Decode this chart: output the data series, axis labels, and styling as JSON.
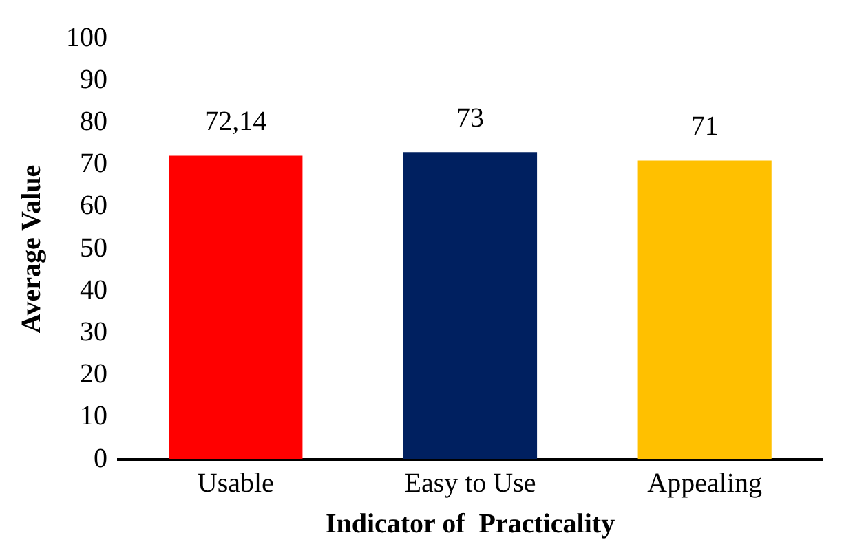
{
  "chart_data": {
    "type": "bar",
    "xlabel": "Indicator of  Practicality",
    "ylabel": "Average Value",
    "categories": [
      "Usable",
      "Easy to Use",
      "Appealing"
    ],
    "values": [
      72.14,
      73,
      71
    ],
    "colors": [
      "#ff0000",
      "#002060",
      "#ffc000"
    ],
    "value_labels": [
      "72,14",
      "73",
      "71"
    ],
    "ylim": [
      0,
      100
    ],
    "yticks": [
      0,
      10,
      20,
      30,
      40,
      50,
      60,
      70,
      80,
      90,
      100
    ],
    "grid": false,
    "legend": false
  }
}
